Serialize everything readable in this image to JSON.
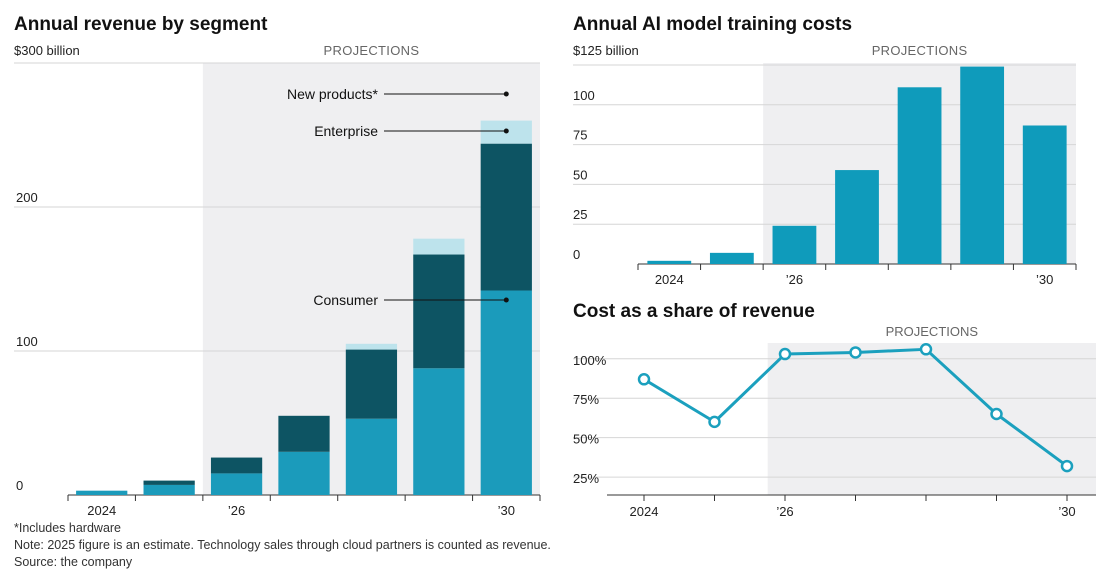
{
  "colors": {
    "consumer": "#1b9bbb",
    "enterprise": "#0d5463",
    "new_products": "#bde3ec",
    "training": "#0f9bbb",
    "line": "#1ba0be",
    "projection_bg": "#efeff1",
    "grid": "#d6d6d6",
    "axis": "#333333"
  },
  "chart_data": [
    {
      "id": "revenue",
      "type": "bar",
      "stacked": true,
      "title": "Annual revenue by segment",
      "unit_label": "$300 billion",
      "projection_label": "PROJECTIONS",
      "projection_start_index": 2,
      "categories": [
        "2024",
        "2025",
        "2026",
        "2027",
        "2028",
        "2029",
        "2030"
      ],
      "tick_labels": [
        "2024",
        "",
        "’26",
        "",
        "",
        "",
        "’30"
      ],
      "y_tick_values": [
        0,
        100,
        200
      ],
      "y_tick_labels": [
        "0",
        "100",
        "200"
      ],
      "ylim": [
        0,
        300
      ],
      "series": [
        {
          "name": "Consumer",
          "values": [
            3,
            7,
            15,
            30,
            53,
            88,
            142
          ]
        },
        {
          "name": "Enterprise",
          "values": [
            0,
            3,
            11,
            25,
            48,
            79,
            102
          ]
        },
        {
          "name": "New products*",
          "values": [
            0,
            0,
            0,
            0,
            4,
            11,
            16
          ]
        }
      ]
    },
    {
      "id": "training",
      "type": "bar",
      "title": "Annual AI model training costs",
      "unit_label": "$125 billion",
      "projection_label": "PROJECTIONS",
      "projection_start_index": 2,
      "categories": [
        "2024",
        "2025",
        "2026",
        "2027",
        "2028",
        "2029",
        "2030"
      ],
      "tick_labels": [
        "2024",
        "",
        "’26",
        "",
        "",
        "",
        "’30"
      ],
      "y_tick_values": [
        0,
        25,
        50,
        75,
        100
      ],
      "y_tick_labels": [
        "0",
        "25",
        "50",
        "75",
        "100"
      ],
      "ylim": [
        0,
        125
      ],
      "values": [
        2,
        7,
        24,
        59,
        111,
        124,
        87
      ]
    },
    {
      "id": "share",
      "type": "line",
      "title": "Cost as a share of revenue",
      "projection_label": "PROJECTIONS",
      "projection_start_index": 2,
      "categories": [
        "2024",
        "2025",
        "2026",
        "2027",
        "2028",
        "2029",
        "2030"
      ],
      "tick_labels": [
        "2024",
        "",
        "’26",
        "",
        "",
        "",
        "’30"
      ],
      "y_tick_values": [
        25,
        50,
        75,
        100
      ],
      "y_tick_labels": [
        "25%",
        "50%",
        "75%",
        "100%"
      ],
      "ylim": [
        20,
        110
      ],
      "values": [
        87,
        60,
        103,
        104,
        106,
        65,
        32
      ]
    }
  ],
  "footnotes": {
    "asterisk": "*Includes hardware",
    "note": "Note: 2025 figure is an estimate. Technology sales through cloud partners is counted as revenue.",
    "source": "Source: the company"
  }
}
